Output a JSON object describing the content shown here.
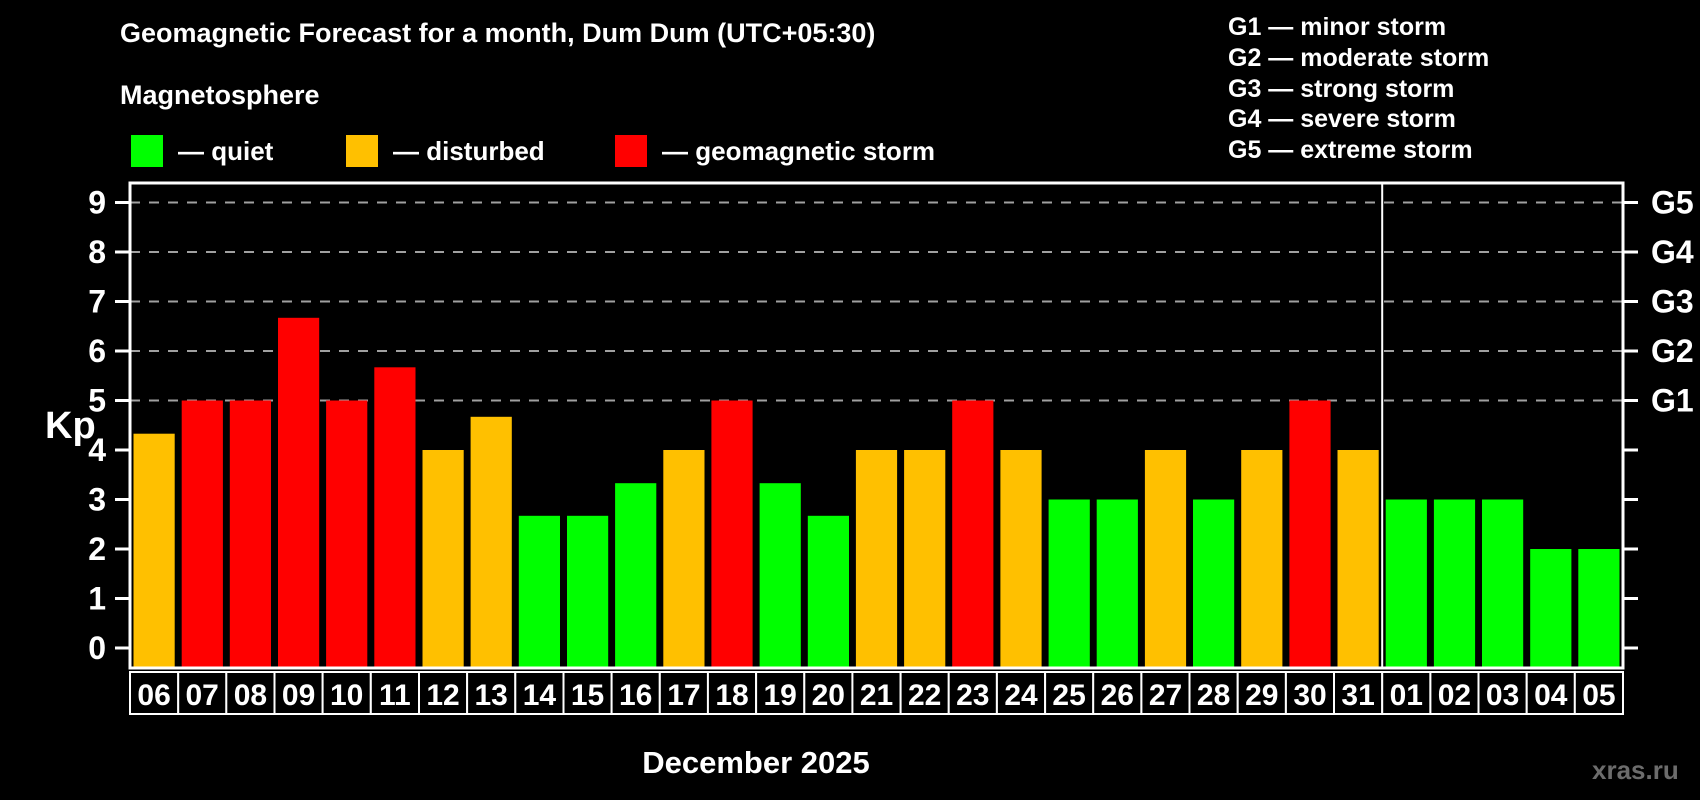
{
  "header": {
    "title": "Geomagnetic Forecast for a month, Dum Dum (UTC+05:30)",
    "subtitle": "Magnetosphere"
  },
  "legend": {
    "items": [
      {
        "key": "quiet",
        "label": "— quiet",
        "color": "#00ff00"
      },
      {
        "key": "disturbed",
        "label": "— disturbed",
        "color": "#ffc000"
      },
      {
        "key": "storm",
        "label": "— geomagnetic storm",
        "color": "#ff0000"
      }
    ]
  },
  "g_legend": {
    "items": [
      "G1 — minor storm",
      "G2 — moderate storm",
      "G3 — strong storm",
      "G4 — severe storm",
      "G5 — extreme storm"
    ]
  },
  "chart_data": {
    "type": "bar",
    "title": "Geomagnetic Forecast for a month, Dum Dum (UTC+05:30)",
    "ylabel": "Kp",
    "xlabel": "December 2025",
    "categories": [
      "06",
      "07",
      "08",
      "09",
      "10",
      "11",
      "12",
      "13",
      "14",
      "15",
      "16",
      "17",
      "18",
      "19",
      "20",
      "21",
      "22",
      "23",
      "24",
      "25",
      "26",
      "27",
      "28",
      "29",
      "30",
      "31",
      "01",
      "02",
      "03",
      "04",
      "05"
    ],
    "values": [
      4.33,
      5,
      5,
      6.67,
      5,
      5.67,
      4,
      4.67,
      2.67,
      2.67,
      3.33,
      4,
      5,
      3.33,
      2.67,
      4,
      4,
      5,
      4,
      3,
      3,
      4,
      3,
      4,
      5,
      4,
      3,
      3,
      3,
      2,
      2
    ],
    "ylim": [
      0,
      9
    ],
    "y_ticks": [
      0,
      1,
      2,
      3,
      4,
      5,
      6,
      7,
      8,
      9
    ],
    "grid_levels": [
      5,
      6,
      7,
      8,
      9
    ],
    "right_axis_labels": {
      "5": "G1",
      "6": "G2",
      "7": "G3",
      "8": "G4",
      "9": "G5"
    },
    "colors": {
      "quiet": "#00ff00",
      "disturbed": "#ffc000",
      "storm": "#ff0000"
    },
    "color_rules": {
      "disturbed_min": 4,
      "storm_min": 5
    },
    "month_separator_after": "31",
    "grid": true,
    "legend_position": "top"
  },
  "footer": {
    "watermark": "xras.ru"
  }
}
